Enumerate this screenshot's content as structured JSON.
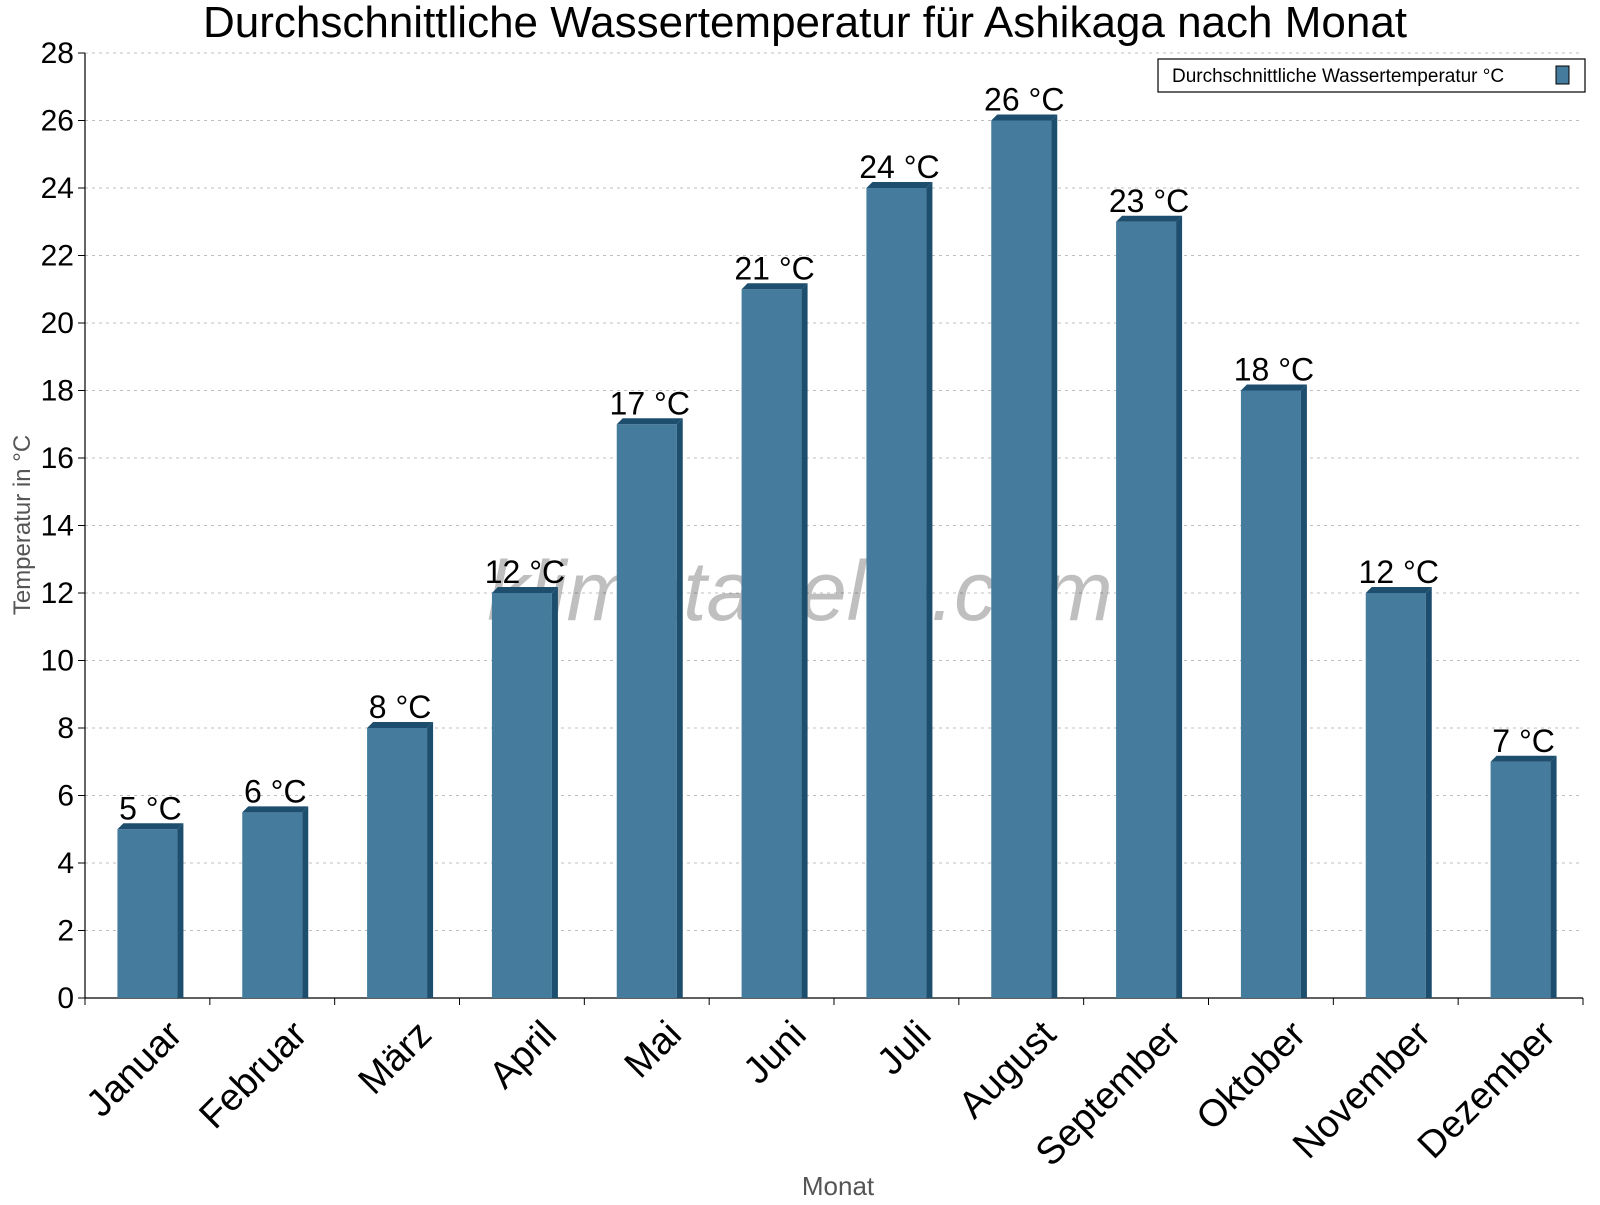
{
  "chart_data": {
    "type": "bar",
    "title": "Durchschnittliche Wassertemperatur für Ashikaga nach Monat",
    "xlabel": "Monat",
    "ylabel": "Temperatur in °C",
    "categories": [
      "Januar",
      "Februar",
      "März",
      "April",
      "Mai",
      "Juni",
      "Juli",
      "August",
      "September",
      "Oktober",
      "November",
      "Dezember"
    ],
    "series": [
      {
        "name": "Durchschnittliche Wassertemperatur °C",
        "values": [
          5,
          5.5,
          8,
          12,
          17,
          21,
          24,
          26,
          23,
          18,
          12,
          7
        ],
        "labels": [
          "5 °C",
          "6 °C",
          "8 °C",
          "12 °C",
          "17 °C",
          "21 °C",
          "24 °C",
          "26 °C",
          "23 °C",
          "18 °C",
          "12 °C",
          "7 °C"
        ],
        "color": "#457b9d",
        "shade_color": "#1d4e6e"
      }
    ],
    "ylim": [
      0,
      28
    ],
    "yticks": [
      0,
      2,
      4,
      6,
      8,
      10,
      12,
      14,
      16,
      18,
      20,
      22,
      24,
      26,
      28
    ],
    "grid": true,
    "legend_position": "top-right",
    "watermark": "klimatabelle.com"
  }
}
